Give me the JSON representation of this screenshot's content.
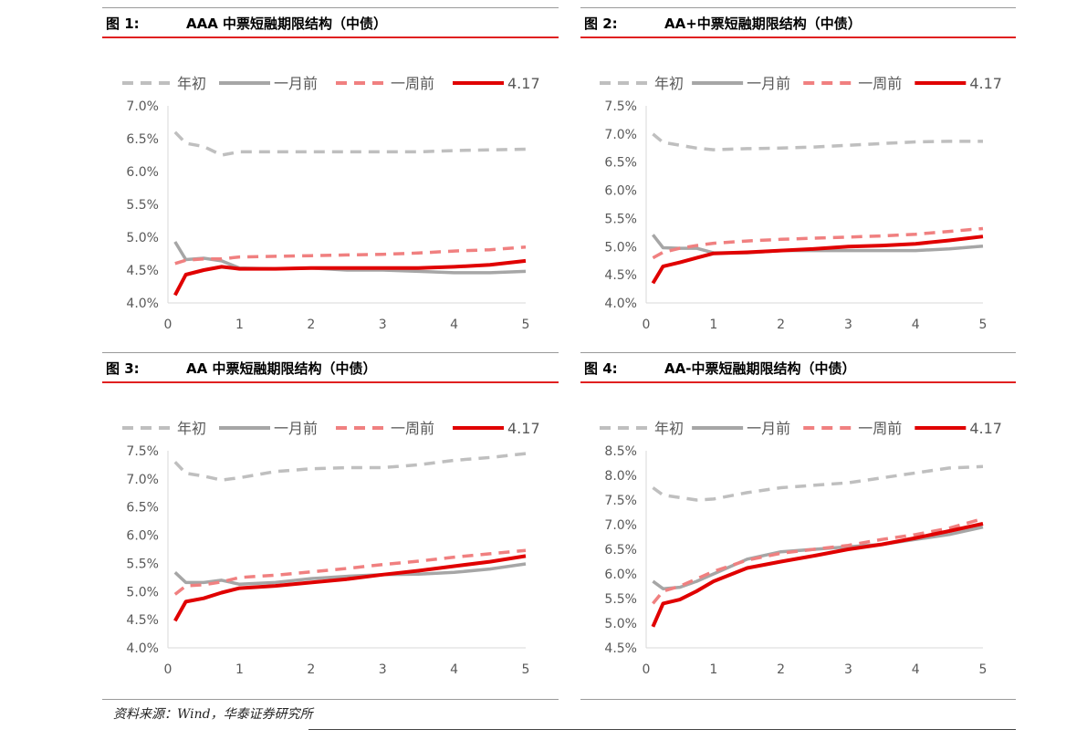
{
  "legend": [
    {
      "name": "年初",
      "color": "#bfbfbf",
      "dash": true
    },
    {
      "name": "一月前",
      "color": "#a6a6a6",
      "dash": false
    },
    {
      "name": "一周前",
      "color": "#f08080",
      "dash": true
    },
    {
      "name": "4.17",
      "color": "#e00000",
      "dash": false
    }
  ],
  "source": "资料来源：Wind，华泰证券研究所",
  "charts": [
    {
      "label": "图 1:",
      "title": "AAA 中票短融期限结构（中债）",
      "chart_data": {
        "type": "line",
        "ylim": [
          0.04,
          0.07
        ],
        "ystep": 0.005,
        "ytick_format": "0.0%",
        "xlim": [
          0,
          5
        ],
        "xticks": [
          0,
          1,
          2,
          3,
          4,
          5
        ],
        "grid": false,
        "legend_position": "top",
        "x": [
          0.1,
          0.25,
          0.5,
          0.75,
          1,
          1.5,
          2,
          2.5,
          3,
          3.5,
          4,
          4.5,
          5
        ],
        "series": [
          {
            "name": "年初",
            "values": [
              0.066,
              0.0643,
              0.0638,
              0.0625,
              0.063,
              0.063,
              0.063,
              0.063,
              0.063,
              0.063,
              0.0632,
              0.0633,
              0.0634
            ]
          },
          {
            "name": "一月前",
            "values": [
              0.0493,
              0.0466,
              0.0468,
              0.0464,
              0.0453,
              0.0452,
              0.0453,
              0.045,
              0.045,
              0.0448,
              0.0446,
              0.0446,
              0.0448
            ]
          },
          {
            "name": "一周前",
            "values": [
              0.046,
              0.0465,
              0.0467,
              0.0467,
              0.047,
              0.0471,
              0.0472,
              0.0473,
              0.0474,
              0.0476,
              0.0479,
              0.0481,
              0.0485
            ]
          },
          {
            "name": "4.17",
            "values": [
              0.0412,
              0.0443,
              0.045,
              0.0455,
              0.0452,
              0.0452,
              0.0453,
              0.0453,
              0.0453,
              0.0453,
              0.0455,
              0.0458,
              0.0464
            ]
          }
        ]
      }
    },
    {
      "label": "图 2:",
      "title": "AA+中票短融期限结构（中债）",
      "chart_data": {
        "type": "line",
        "ylim": [
          0.04,
          0.075
        ],
        "ystep": 0.005,
        "ytick_format": "0.0%",
        "xlim": [
          0,
          5
        ],
        "xticks": [
          0,
          1,
          2,
          3,
          4,
          5
        ],
        "grid": false,
        "legend_position": "top",
        "x": [
          0.1,
          0.25,
          0.5,
          0.75,
          1,
          1.5,
          2,
          2.5,
          3,
          3.5,
          4,
          4.5,
          5
        ],
        "series": [
          {
            "name": "年初",
            "values": [
              0.07,
              0.0685,
              0.068,
              0.0675,
              0.0672,
              0.0674,
              0.0675,
              0.0677,
              0.068,
              0.0683,
              0.0686,
              0.0687,
              0.0687
            ]
          },
          {
            "name": "一月前",
            "values": [
              0.0521,
              0.0498,
              0.0497,
              0.0497,
              0.0489,
              0.0489,
              0.0493,
              0.0493,
              0.0493,
              0.0493,
              0.0493,
              0.0496,
              0.0501
            ]
          },
          {
            "name": "一周前",
            "values": [
              0.048,
              0.049,
              0.0497,
              0.0502,
              0.0506,
              0.051,
              0.0513,
              0.0515,
              0.0517,
              0.0519,
              0.0522,
              0.0527,
              0.0532
            ]
          },
          {
            "name": "4.17",
            "values": [
              0.0435,
              0.0465,
              0.0472,
              0.048,
              0.0488,
              0.049,
              0.0493,
              0.0496,
              0.05,
              0.0502,
              0.0505,
              0.0511,
              0.0518
            ]
          }
        ]
      }
    },
    {
      "label": "图 3:",
      "title": "AA 中票短融期限结构（中债）",
      "chart_data": {
        "type": "line",
        "ylim": [
          0.04,
          0.075
        ],
        "ystep": 0.005,
        "ytick_format": "0.0%",
        "xlim": [
          0,
          5
        ],
        "xticks": [
          0,
          1,
          2,
          3,
          4,
          5
        ],
        "grid": false,
        "legend_position": "top",
        "x": [
          0.1,
          0.25,
          0.5,
          0.75,
          1,
          1.5,
          2,
          2.5,
          3,
          3.5,
          4,
          4.5,
          5
        ],
        "series": [
          {
            "name": "年初",
            "values": [
              0.073,
              0.071,
              0.0705,
              0.0698,
              0.0702,
              0.0713,
              0.0718,
              0.072,
              0.072,
              0.0725,
              0.0733,
              0.0738,
              0.0745
            ]
          },
          {
            "name": "一月前",
            "values": [
              0.0534,
              0.0516,
              0.0516,
              0.052,
              0.0513,
              0.0516,
              0.0523,
              0.0527,
              0.053,
              0.0531,
              0.0534,
              0.054,
              0.0549
            ]
          },
          {
            "name": "一周前",
            "values": [
              0.0495,
              0.051,
              0.0512,
              0.0517,
              0.0525,
              0.0529,
              0.0535,
              0.0541,
              0.0548,
              0.0554,
              0.0561,
              0.0567,
              0.0573
            ]
          },
          {
            "name": "4.17",
            "values": [
              0.0448,
              0.0482,
              0.0488,
              0.0498,
              0.0506,
              0.051,
              0.0516,
              0.0522,
              0.053,
              0.0537,
              0.0545,
              0.0553,
              0.0563
            ]
          }
        ]
      }
    },
    {
      "label": "图 4:",
      "title": "AA-中票短融期限结构（中债）",
      "chart_data": {
        "type": "line",
        "ylim": [
          0.045,
          0.085
        ],
        "ystep": 0.005,
        "ytick_format": "0.0%",
        "xlim": [
          0,
          5
        ],
        "xticks": [
          0,
          1,
          2,
          3,
          4,
          5
        ],
        "grid": false,
        "legend_position": "top",
        "x": [
          0.1,
          0.25,
          0.5,
          0.75,
          1,
          1.5,
          2,
          2.5,
          3,
          3.5,
          4,
          4.5,
          5
        ],
        "series": [
          {
            "name": "年初",
            "values": [
              0.0775,
              0.076,
              0.0755,
              0.075,
              0.0752,
              0.0765,
              0.0775,
              0.078,
              0.0785,
              0.0795,
              0.0805,
              0.0815,
              0.0818
            ]
          },
          {
            "name": "一月前",
            "values": [
              0.0585,
              0.057,
              0.0573,
              0.0585,
              0.06,
              0.063,
              0.0645,
              0.065,
              0.0655,
              0.066,
              0.067,
              0.068,
              0.0695
            ]
          },
          {
            "name": "一周前",
            "values": [
              0.054,
              0.0565,
              0.0575,
              0.059,
              0.0605,
              0.0628,
              0.0642,
              0.065,
              0.0658,
              0.067,
              0.068,
              0.0693,
              0.0712
            ]
          },
          {
            "name": "4.17",
            "values": [
              0.0493,
              0.054,
              0.0548,
              0.0565,
              0.0585,
              0.0612,
              0.0625,
              0.0637,
              0.065,
              0.066,
              0.0673,
              0.0687,
              0.0702
            ]
          }
        ]
      }
    }
  ]
}
